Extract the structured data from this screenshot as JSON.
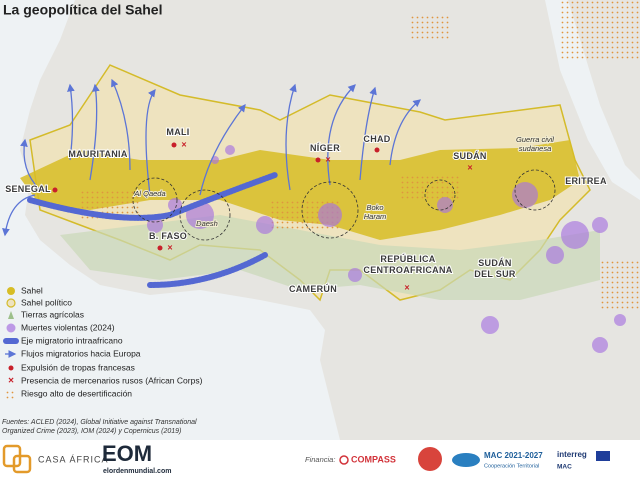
{
  "title": "La geopolítica del Sahel",
  "countries": [
    {
      "lines": [
        "MAURITANIA"
      ]
    },
    {
      "lines": [
        "MALI"
      ]
    },
    {
      "lines": [
        "NÍGER"
      ]
    },
    {
      "lines": [
        "CHAD"
      ]
    },
    {
      "lines": [
        "SUDÁN"
      ]
    },
    {
      "lines": [
        "ERITREA"
      ]
    },
    {
      "lines": [
        "SENEGAL"
      ]
    },
    {
      "lines": [
        "B. FASO"
      ]
    },
    {
      "lines": [
        "CAMERÚN"
      ]
    },
    {
      "lines": [
        "REPÚBLICA",
        "CENTROAFRICANA"
      ]
    },
    {
      "lines": [
        "SUDÁN",
        "DEL SUR"
      ]
    }
  ],
  "annotations": [
    {
      "lines": [
        "Al Qaeda"
      ]
    },
    {
      "lines": [
        "Daesh"
      ]
    },
    {
      "lines": [
        "Boko",
        "Haram"
      ]
    },
    {
      "lines": [
        "Guerra civil",
        "sudanesa"
      ]
    }
  ],
  "legend": [
    "Sahel",
    "Sahel político",
    "Tierras agrícolas",
    "Muertes violentas (2024)",
    "Eje migratorio intraafricano",
    "Flujos migratorios hacia Europa",
    "Expulsión de tropas francesas",
    "Presencia de mercenarios rusos (African Corps)",
    "Riesgo alto de desertificación"
  ],
  "sources": [
    "Fuentes: ACLED (2024), Global Initiative against Transnational",
    "Organized Crime (2023), IOM (2024) y Copernicus (2019)"
  ],
  "footer": {
    "casa_africa": "CASA ÁFRICA",
    "eom": "EOM",
    "eom_url": "elordenmundial.com",
    "financia": "Financia:",
    "compass": "COMPASS",
    "mac": "MAC 2021-2027",
    "mac_sub": "Cooperación Territorial",
    "interreg": "interreg",
    "interreg_sub": "MAC"
  }
}
